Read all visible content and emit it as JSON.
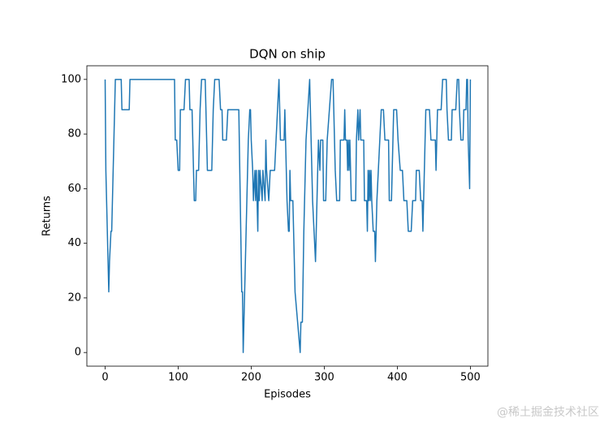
{
  "chart_data": {
    "type": "line",
    "title": "DQN on ship",
    "xlabel": "Episodes",
    "ylabel": "Returns",
    "color": "#1f77b4",
    "x": [
      0,
      1,
      2,
      4,
      5,
      6,
      8,
      9,
      12,
      14,
      22,
      23,
      33,
      34,
      95,
      96,
      98,
      100,
      102,
      103,
      108,
      110,
      115,
      116,
      119,
      121,
      122,
      124,
      125,
      128,
      130,
      132,
      137,
      138,
      140,
      146,
      148,
      150,
      156,
      158,
      160,
      161,
      166,
      168,
      183,
      185,
      187,
      188,
      189,
      191,
      193,
      196,
      198,
      199,
      200,
      202,
      203,
      205,
      206,
      207,
      209,
      210,
      211,
      212,
      215,
      216,
      219,
      220,
      221,
      224,
      226,
      232,
      234,
      238,
      240,
      245,
      246,
      247,
      249,
      251,
      252,
      253,
      254,
      257,
      260,
      267,
      268,
      270,
      272,
      275,
      280,
      282,
      284,
      286,
      288,
      289,
      291,
      292,
      294,
      295,
      298,
      299,
      302,
      304,
      310,
      312,
      313,
      315,
      317,
      321,
      322,
      327,
      328,
      329,
      331,
      332,
      333,
      334,
      335,
      337,
      343,
      344,
      346,
      347,
      349,
      350,
      354,
      355,
      358,
      359,
      360,
      361,
      362,
      363,
      364,
      365,
      367,
      369,
      370,
      372,
      374,
      376,
      378,
      381,
      383,
      388,
      389,
      392,
      393,
      395,
      399,
      401,
      404,
      407,
      409,
      413,
      415,
      419,
      421,
      425,
      426,
      430,
      432,
      434,
      435,
      437,
      439,
      444,
      446,
      452,
      453,
      455,
      460,
      462,
      467,
      468,
      470,
      474,
      475,
      480,
      482,
      484,
      485,
      487,
      490,
      491,
      494,
      495,
      496,
      497,
      499,
      500
    ],
    "values": [
      100,
      66.7,
      55.6,
      33.3,
      22.2,
      33.3,
      44.4,
      44.4,
      77.8,
      100,
      100,
      88.9,
      88.9,
      100,
      100,
      77.8,
      77.8,
      66.7,
      66.7,
      88.9,
      88.9,
      100,
      100,
      88.9,
      88.9,
      66.7,
      55.6,
      55.6,
      66.7,
      66.7,
      88.9,
      100,
      100,
      88.9,
      66.7,
      66.7,
      88.9,
      100,
      100,
      88.9,
      88.9,
      77.8,
      77.8,
      88.9,
      88.9,
      55.6,
      22.2,
      22.2,
      0,
      22.2,
      44.4,
      77.8,
      88.9,
      88.9,
      77.8,
      66.7,
      55.6,
      66.7,
      55.6,
      66.7,
      44.4,
      66.7,
      55.6,
      66.7,
      55.6,
      66.7,
      55.6,
      77.8,
      66.7,
      55.6,
      66.7,
      66.7,
      77.8,
      100,
      77.8,
      77.8,
      88.9,
      77.8,
      55.6,
      44.4,
      44.4,
      66.7,
      55.6,
      55.6,
      22.2,
      0,
      11.1,
      11.1,
      44.4,
      77.8,
      100,
      77.8,
      55.6,
      44.4,
      33.3,
      44.4,
      66.7,
      77.8,
      66.7,
      77.8,
      77.8,
      55.6,
      55.6,
      77.8,
      100,
      100,
      88.9,
      66.7,
      55.6,
      55.6,
      77.8,
      77.8,
      88.9,
      77.8,
      77.8,
      66.7,
      77.8,
      66.7,
      77.8,
      55.6,
      55.6,
      77.8,
      88.9,
      77.8,
      88.9,
      77.8,
      77.8,
      55.6,
      55.6,
      44.4,
      66.7,
      55.6,
      66.7,
      55.6,
      66.7,
      55.6,
      44.4,
      44.4,
      33.3,
      55.6,
      66.7,
      77.8,
      88.9,
      88.9,
      77.8,
      77.8,
      55.6,
      55.6,
      66.7,
      88.9,
      88.9,
      77.8,
      66.7,
      66.7,
      55.6,
      55.6,
      44.4,
      44.4,
      55.6,
      55.6,
      66.7,
      66.7,
      55.6,
      55.6,
      44.4,
      66.7,
      88.9,
      88.9,
      77.8,
      77.8,
      66.7,
      88.9,
      88.9,
      100,
      100,
      88.9,
      77.8,
      77.8,
      88.9,
      88.9,
      100,
      100,
      88.9,
      77.8,
      77.8,
      88.9,
      88.9,
      100,
      100,
      77.8,
      60,
      100
    ],
    "xlim": [
      -25,
      524
    ],
    "ylim": [
      -5,
      105
    ],
    "xticks": [
      0,
      100,
      200,
      300,
      400,
      500
    ],
    "yticks": [
      0,
      20,
      40,
      60,
      80,
      100
    ]
  },
  "watermark": "@稀土掘金技术社区"
}
